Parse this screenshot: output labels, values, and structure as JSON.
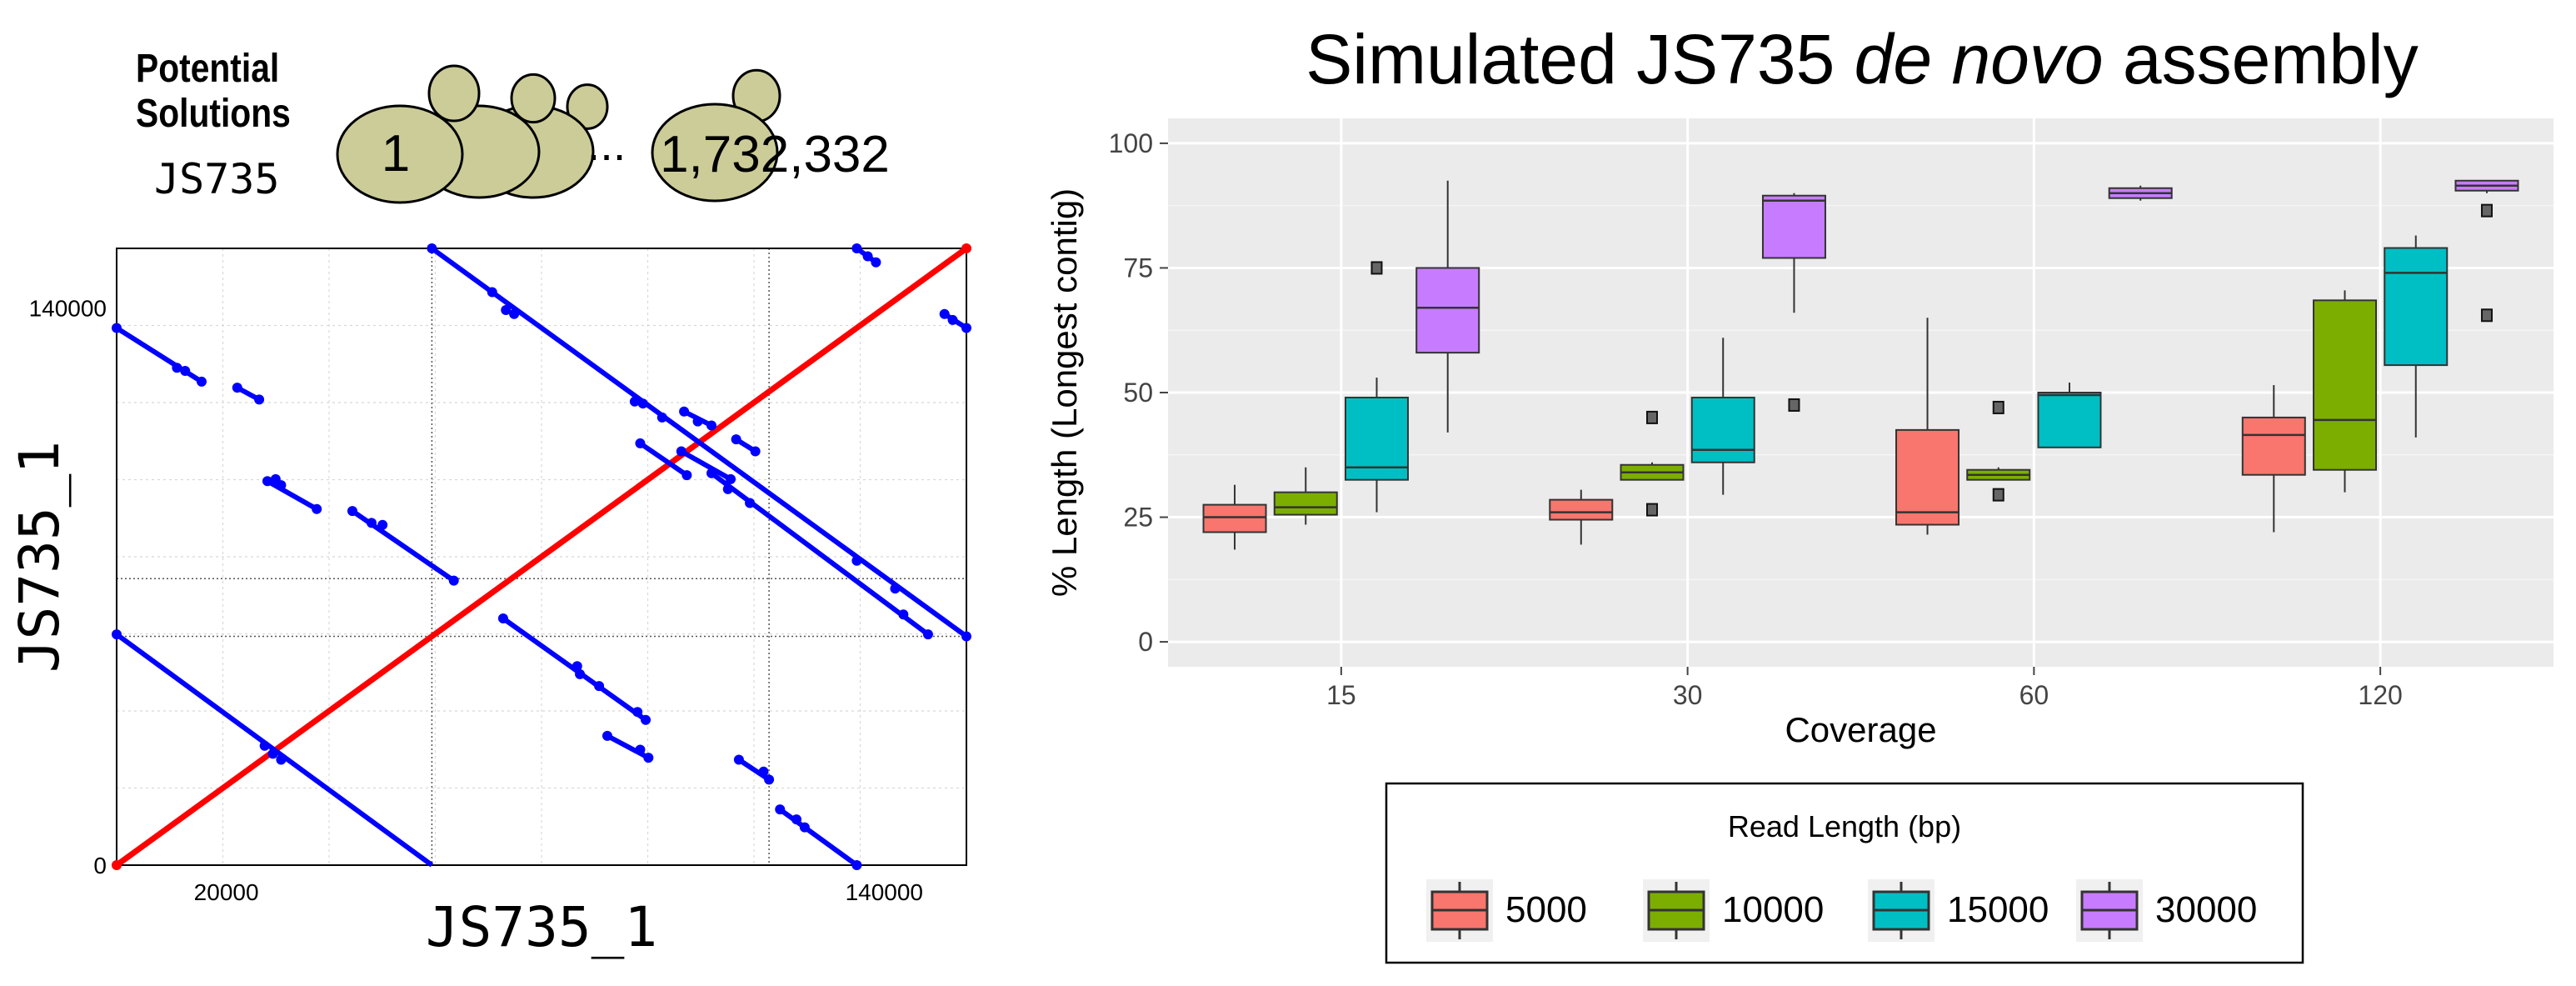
{
  "left_panel": {
    "header_line1": "Potential",
    "header_line2": "Solutions",
    "strain_label": "JS735",
    "cell_first": "1",
    "ellipsis": "...",
    "cell_last": "1,732,332",
    "cell_color": "#cccc99"
  },
  "right_panel": {
    "title_prefix": "Simulated JS735 ",
    "title_italic": "de novo",
    "title_suffix": " assembly"
  },
  "chart_data": [
    {
      "type": "scatter",
      "subtype": "dot-plot",
      "xlabel": "JS735_1",
      "ylabel": "JS735_1",
      "x_ticks": [
        {
          "value": 20000,
          "label": "20000"
        },
        {
          "value": 140000,
          "label": "140000"
        }
      ],
      "y_ticks": [
        {
          "value": 0,
          "label": "0"
        },
        {
          "value": 140000,
          "label": "140000"
        }
      ],
      "xlim": [
        0,
        155000
      ],
      "ylim": [
        0,
        155000
      ],
      "self_line_color": "#ff0000",
      "match_color": "#0000ff",
      "self_line": {
        "from": [
          0,
          0
        ],
        "to": [
          155000,
          155000
        ]
      },
      "matches": [
        {
          "from": [
            0,
            135000
          ],
          "to": [
            15500,
            121500
          ],
          "dots": [
            [
              0,
              135000
            ],
            [
              11000,
              125000
            ],
            [
              12500,
              124200
            ],
            [
              15500,
              121500
            ]
          ]
        },
        {
          "from": [
            22000,
            120000
          ],
          "to": [
            26000,
            117000
          ],
          "dots": [
            [
              22000,
              120000
            ],
            [
              26000,
              117000
            ]
          ]
        },
        {
          "from": [
            27500,
            96500
          ],
          "to": [
            36500,
            89500
          ],
          "dots": [
            [
              27500,
              96500
            ],
            [
              29000,
              97000
            ],
            [
              30000,
              95500
            ],
            [
              36500,
              89500
            ]
          ]
        },
        {
          "from": [
            43000,
            89000
          ],
          "to": [
            61500,
            71500
          ],
          "dots": [
            [
              43000,
              89000
            ],
            [
              46500,
              86000
            ],
            [
              48500,
              85500
            ],
            [
              61500,
              71500
            ]
          ]
        },
        {
          "from": [
            0,
            58000
          ],
          "to": [
            57500,
            0
          ],
          "dots": [
            [
              0,
              58000
            ],
            [
              27000,
              30000
            ],
            [
              28500,
              28000
            ],
            [
              30000,
              26500
            ]
          ]
        },
        {
          "from": [
            57500,
            155000
          ],
          "to": [
            155000,
            57500
          ],
          "dots": [
            [
              57500,
              155000
            ],
            [
              68500,
              144000
            ],
            [
              71000,
              139500
            ],
            [
              72500,
              138500
            ],
            [
              94500,
              116500
            ],
            [
              96000,
              116000
            ],
            [
              99500,
              112500
            ],
            [
              135000,
              76500
            ],
            [
              142000,
              69500
            ],
            [
              155000,
              57500
            ]
          ]
        },
        {
          "from": [
            70500,
            62000
          ],
          "to": [
            96500,
            36500
          ],
          "dots": [
            [
              70500,
              62000
            ],
            [
              84000,
              50000
            ],
            [
              84500,
              48000
            ],
            [
              88000,
              45000
            ],
            [
              95000,
              38500
            ],
            [
              96500,
              36500
            ]
          ]
        },
        {
          "from": [
            89500,
            32500
          ],
          "to": [
            97000,
            27000
          ],
          "dots": [
            [
              89500,
              32500
            ],
            [
              95500,
              29000
            ],
            [
              97000,
              27000
            ]
          ]
        },
        {
          "from": [
            95500,
            106000
          ],
          "to": [
            104000,
            98000
          ],
          "dots": [
            [
              95500,
              106000
            ],
            [
              104000,
              98000
            ]
          ]
        },
        {
          "from": [
            103500,
            114000
          ],
          "to": [
            108500,
            110500
          ],
          "dots": [
            [
              103500,
              114000
            ],
            [
              106000,
              111500
            ],
            [
              108500,
              110500
            ]
          ]
        },
        {
          "from": [
            103000,
            104000
          ],
          "to": [
            112000,
            97000
          ],
          "dots": [
            [
              103000,
              104000
            ],
            [
              112000,
              97000
            ]
          ]
        },
        {
          "from": [
            113000,
            107000
          ],
          "to": [
            116500,
            104000
          ],
          "dots": [
            [
              113000,
              107000
            ],
            [
              116500,
              104000
            ]
          ]
        },
        {
          "from": [
            108500,
            98500
          ],
          "to": [
            148000,
            58000
          ],
          "dots": [
            [
              108500,
              98500
            ],
            [
              111500,
              94500
            ],
            [
              115500,
              91000
            ],
            [
              143500,
              63000
            ],
            [
              148000,
              58000
            ]
          ]
        },
        {
          "from": [
            113500,
            26500
          ],
          "to": [
            119000,
            21500
          ],
          "dots": [
            [
              113500,
              26500
            ],
            [
              118000,
              23500
            ],
            [
              119000,
              21500
            ]
          ]
        },
        {
          "from": [
            121000,
            14000
          ],
          "to": [
            135000,
            0
          ],
          "dots": [
            [
              121000,
              14000
            ],
            [
              124000,
              11500
            ],
            [
              125500,
              9500
            ],
            [
              135000,
              0
            ]
          ]
        },
        {
          "from": [
            135000,
            155000
          ],
          "to": [
            138500,
            151500
          ],
          "dots": [
            [
              135000,
              155000
            ],
            [
              137000,
              153000
            ],
            [
              138500,
              151500
            ]
          ]
        },
        {
          "from": [
            151000,
            138500
          ],
          "to": [
            155000,
            135000
          ],
          "dots": [
            [
              151000,
              138500
            ],
            [
              152500,
              137000
            ],
            [
              155000,
              135000
            ]
          ]
        }
      ]
    },
    {
      "type": "box",
      "title": "Simulated JS735 de novo assembly",
      "xlabel": "Coverage",
      "ylabel": "% Length (Longest contig)",
      "categories": [
        "15",
        "30",
        "60",
        "120"
      ],
      "ylim": [
        -5,
        105
      ],
      "y_ticks": [
        0,
        25,
        50,
        75,
        100
      ],
      "grid": true,
      "legend": {
        "title": "Read Length (bp)",
        "position": "bottom"
      },
      "series": [
        {
          "name": "5000",
          "color": "#f8766d",
          "boxes": [
            {
              "min": 18.5,
              "q1": 22,
              "median": 25,
              "q3": 27.5,
              "max": 31.5,
              "outliers": []
            },
            {
              "min": 19.5,
              "q1": 24.5,
              "median": 26,
              "q3": 28.5,
              "max": 30.5,
              "outliers": []
            },
            {
              "min": 21.5,
              "q1": 23.5,
              "median": 26,
              "q3": 42.5,
              "max": 65,
              "outliers": []
            },
            {
              "min": 22,
              "q1": 33.5,
              "median": 41.5,
              "q3": 45,
              "max": 51.5,
              "outliers": []
            }
          ]
        },
        {
          "name": "10000",
          "color": "#7cae00",
          "boxes": [
            {
              "min": 23.5,
              "q1": 25.5,
              "median": 27,
              "q3": 30,
              "max": 35,
              "outliers": []
            },
            {
              "min": 32.5,
              "q1": 32.5,
              "median": 34,
              "q3": 35.5,
              "max": 36,
              "outliers": [
                26.5,
                45
              ]
            },
            {
              "min": 32.5,
              "q1": 32.5,
              "median": 33.5,
              "q3": 34.5,
              "max": 35,
              "outliers": [
                29.5,
                47
              ]
            },
            {
              "min": 30,
              "q1": 34.5,
              "median": 44.5,
              "q3": 68.5,
              "max": 70.5,
              "outliers": []
            }
          ]
        },
        {
          "name": "15000",
          "color": "#00bfc4",
          "boxes": [
            {
              "min": 26,
              "q1": 32.5,
              "median": 35,
              "q3": 49,
              "max": 53,
              "outliers": [
                75
              ]
            },
            {
              "min": 29.5,
              "q1": 36,
              "median": 38.5,
              "q3": 49,
              "max": 61,
              "outliers": []
            },
            {
              "min": 39,
              "q1": 39,
              "median": 49.5,
              "q3": 50,
              "max": 52,
              "outliers": []
            },
            {
              "min": 41,
              "q1": 55.5,
              "median": 74,
              "q3": 79,
              "max": 81.5,
              "outliers": []
            }
          ]
        },
        {
          "name": "30000",
          "color": "#c77cff",
          "boxes": [
            {
              "min": 42,
              "q1": 58,
              "median": 67,
              "q3": 75,
              "max": 92.5,
              "outliers": []
            },
            {
              "min": 66,
              "q1": 77,
              "median": 88.5,
              "q3": 89.5,
              "max": 90,
              "outliers": [
                47.5
              ]
            },
            {
              "min": 88.5,
              "q1": 89,
              "median": 90,
              "q3": 91,
              "max": 91.5,
              "outliers": []
            },
            {
              "min": 90,
              "q1": 90.5,
              "median": 91.5,
              "q3": 92.5,
              "max": 92.5,
              "outliers": [
                86.5,
                65.5
              ]
            }
          ]
        }
      ]
    }
  ]
}
